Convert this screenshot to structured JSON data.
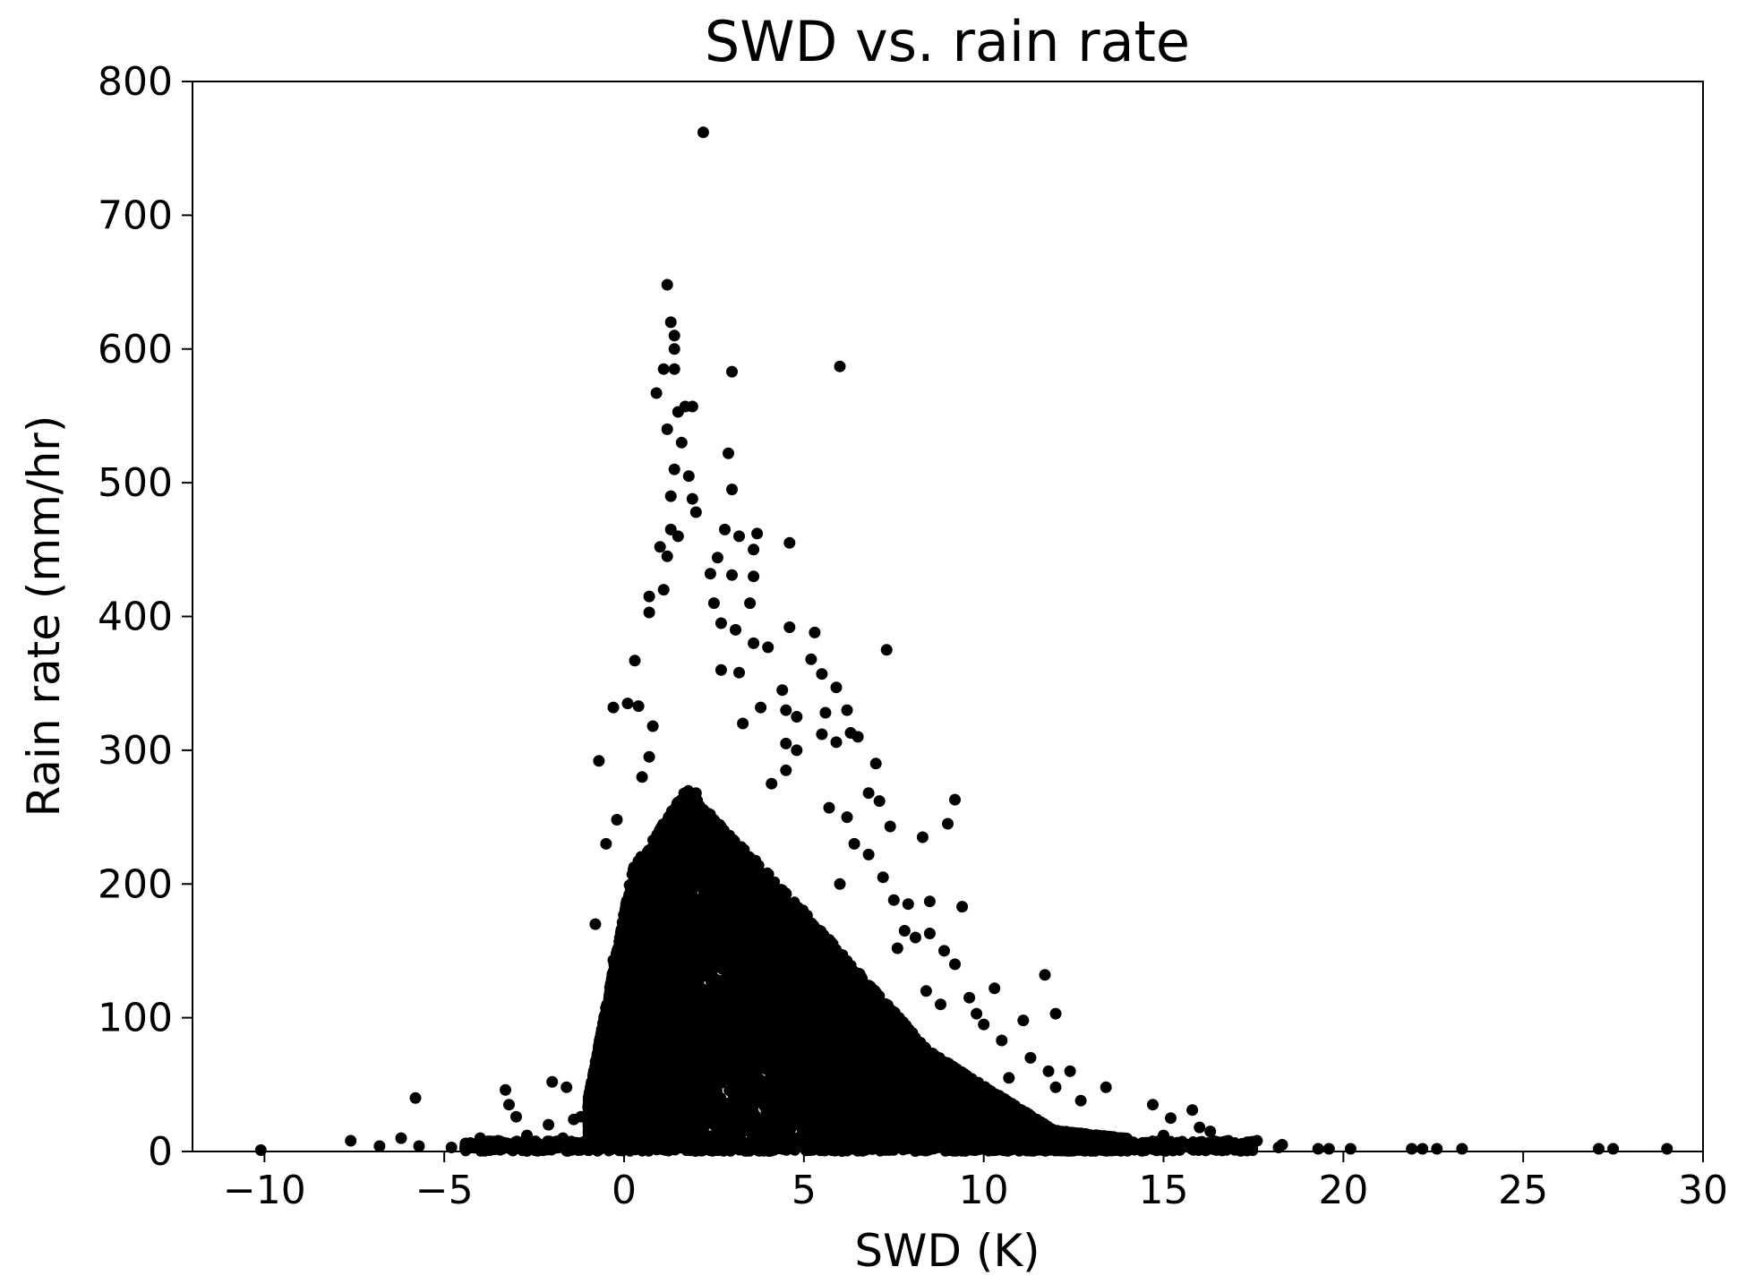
{
  "chart_data": {
    "type": "scatter",
    "title": "SWD vs. rain rate",
    "xlabel": "SWD (K)",
    "ylabel": "Rain rate (mm/hr)",
    "xlim": [
      -12,
      30
    ],
    "ylim": [
      0,
      800
    ],
    "x_ticks": [
      -10,
      -5,
      0,
      5,
      10,
      15,
      20,
      25,
      30
    ],
    "x_tick_labels": [
      "−10",
      "−5",
      "0",
      "5",
      "10",
      "15",
      "20",
      "25",
      "30"
    ],
    "y_ticks": [
      0,
      100,
      200,
      300,
      400,
      500,
      600,
      700,
      800
    ],
    "y_tick_labels": [
      "0",
      "100",
      "200",
      "300",
      "400",
      "500",
      "600",
      "700",
      "800"
    ],
    "grid": false,
    "legend": "none",
    "marker_color": "#000000",
    "series": [
      {
        "points": [
          [
            2.2,
            762
          ],
          [
            1.2,
            648
          ],
          [
            1.3,
            620
          ],
          [
            1.4,
            610
          ],
          [
            1.4,
            600
          ],
          [
            1.1,
            585
          ],
          [
            1.4,
            585
          ],
          [
            3.0,
            583
          ],
          [
            6.0,
            587
          ],
          [
            0.9,
            567
          ],
          [
            1.7,
            557
          ],
          [
            1.9,
            557
          ],
          [
            1.5,
            553
          ],
          [
            1.2,
            540
          ],
          [
            1.6,
            530
          ],
          [
            2.9,
            522
          ],
          [
            1.4,
            510
          ],
          [
            1.8,
            505
          ],
          [
            1.3,
            490
          ],
          [
            3.0,
            495
          ],
          [
            1.9,
            488
          ],
          [
            2.0,
            478
          ],
          [
            1.3,
            465
          ],
          [
            1.5,
            460
          ],
          [
            2.8,
            465
          ],
          [
            3.2,
            460
          ],
          [
            3.7,
            462
          ],
          [
            3.6,
            450
          ],
          [
            4.6,
            455
          ],
          [
            1.0,
            452
          ],
          [
            1.2,
            445
          ],
          [
            2.6,
            444
          ],
          [
            2.4,
            432
          ],
          [
            3.0,
            431
          ],
          [
            3.6,
            430
          ],
          [
            1.1,
            420
          ],
          [
            0.7,
            415
          ],
          [
            2.5,
            410
          ],
          [
            3.5,
            410
          ],
          [
            0.7,
            403
          ],
          [
            4.6,
            392
          ],
          [
            5.3,
            388
          ],
          [
            2.7,
            395
          ],
          [
            3.1,
            390
          ],
          [
            3.6,
            380
          ],
          [
            4.0,
            377
          ],
          [
            7.3,
            375
          ],
          [
            5.2,
            368
          ],
          [
            0.3,
            367
          ],
          [
            5.5,
            357
          ],
          [
            5.9,
            347
          ],
          [
            2.7,
            360
          ],
          [
            3.2,
            358
          ],
          [
            4.4,
            345
          ],
          [
            0.1,
            335
          ],
          [
            0.4,
            333
          ],
          [
            -0.3,
            332
          ],
          [
            3.8,
            332
          ],
          [
            4.5,
            330
          ],
          [
            6.2,
            330
          ],
          [
            5.6,
            328
          ],
          [
            4.8,
            325
          ],
          [
            3.3,
            320
          ],
          [
            0.8,
            318
          ],
          [
            6.3,
            313
          ],
          [
            6.5,
            310
          ],
          [
            5.9,
            306
          ],
          [
            5.5,
            312
          ],
          [
            4.5,
            305
          ],
          [
            4.8,
            300
          ],
          [
            -0.7,
            292
          ],
          [
            0.7,
            295
          ],
          [
            7.0,
            290
          ],
          [
            0.5,
            280
          ],
          [
            4.5,
            285
          ],
          [
            4.1,
            275
          ],
          [
            6.8,
            268
          ],
          [
            7.1,
            262
          ],
          [
            9.2,
            263
          ],
          [
            2.0,
            268
          ],
          [
            5.7,
            257
          ],
          [
            6.2,
            250
          ],
          [
            9.0,
            245
          ],
          [
            -0.2,
            248
          ],
          [
            7.4,
            243
          ],
          [
            8.3,
            235
          ],
          [
            -0.5,
            230
          ],
          [
            6.4,
            230
          ],
          [
            6.8,
            222
          ],
          [
            7.2,
            205
          ],
          [
            0.5,
            210
          ],
          [
            6.0,
            200
          ],
          [
            7.5,
            188
          ],
          [
            8.5,
            187
          ],
          [
            9.4,
            183
          ],
          [
            7.9,
            185
          ],
          [
            -0.8,
            170
          ],
          [
            7.8,
            165
          ],
          [
            8.5,
            163
          ],
          [
            8.1,
            160
          ],
          [
            7.6,
            152
          ],
          [
            8.9,
            150
          ],
          [
            -0.3,
            143
          ],
          [
            11.7,
            132
          ],
          [
            9.2,
            140
          ],
          [
            9.6,
            115
          ],
          [
            10.3,
            122
          ],
          [
            8.4,
            120
          ],
          [
            8.8,
            110
          ],
          [
            9.8,
            103
          ],
          [
            11.1,
            98
          ],
          [
            12.0,
            103
          ],
          [
            10.0,
            95
          ],
          [
            10.5,
            83
          ],
          [
            11.3,
            70
          ],
          [
            11.8,
            60
          ],
          [
            12.4,
            60
          ],
          [
            12.0,
            48
          ],
          [
            13.4,
            48
          ],
          [
            10.7,
            55
          ],
          [
            12.7,
            38
          ],
          [
            14.7,
            35
          ],
          [
            15.8,
            31
          ],
          [
            15.2,
            25
          ],
          [
            16.0,
            18
          ],
          [
            16.3,
            15
          ],
          [
            17.6,
            8
          ],
          [
            15.0,
            12
          ],
          [
            16.8,
            8
          ],
          [
            18.3,
            5
          ],
          [
            18.2,
            3
          ],
          [
            19.3,
            2
          ],
          [
            19.6,
            2
          ],
          [
            20.2,
            2
          ],
          [
            21.9,
            2
          ],
          [
            22.2,
            2
          ],
          [
            22.6,
            2
          ],
          [
            23.3,
            2
          ],
          [
            27.1,
            2
          ],
          [
            27.5,
            2
          ],
          [
            29.0,
            2
          ],
          [
            -10.1,
            1
          ],
          [
            -7.6,
            8
          ],
          [
            -6.8,
            4
          ],
          [
            -6.2,
            10
          ],
          [
            -5.8,
            40
          ],
          [
            -5.7,
            4
          ],
          [
            -4.8,
            3
          ],
          [
            -4.4,
            6
          ],
          [
            -4.0,
            10
          ],
          [
            -3.5,
            8
          ],
          [
            -3.3,
            46
          ],
          [
            -3.2,
            35
          ],
          [
            -3.0,
            26
          ],
          [
            -2.7,
            12
          ],
          [
            -2.4,
            6
          ],
          [
            -2.1,
            20
          ],
          [
            -2.0,
            52
          ],
          [
            -1.7,
            10
          ],
          [
            -1.6,
            48
          ],
          [
            -1.4,
            24
          ],
          [
            -1.2,
            26
          ],
          [
            -1.0,
            33
          ],
          [
            -0.8,
            50
          ],
          [
            -0.7,
            65
          ],
          [
            -0.5,
            90
          ],
          [
            -0.4,
            105
          ],
          [
            -0.2,
            125
          ],
          [
            0.0,
            155
          ],
          [
            0.1,
            175
          ],
          [
            -0.3,
            70
          ],
          [
            -0.6,
            80
          ]
        ]
      }
    ]
  }
}
